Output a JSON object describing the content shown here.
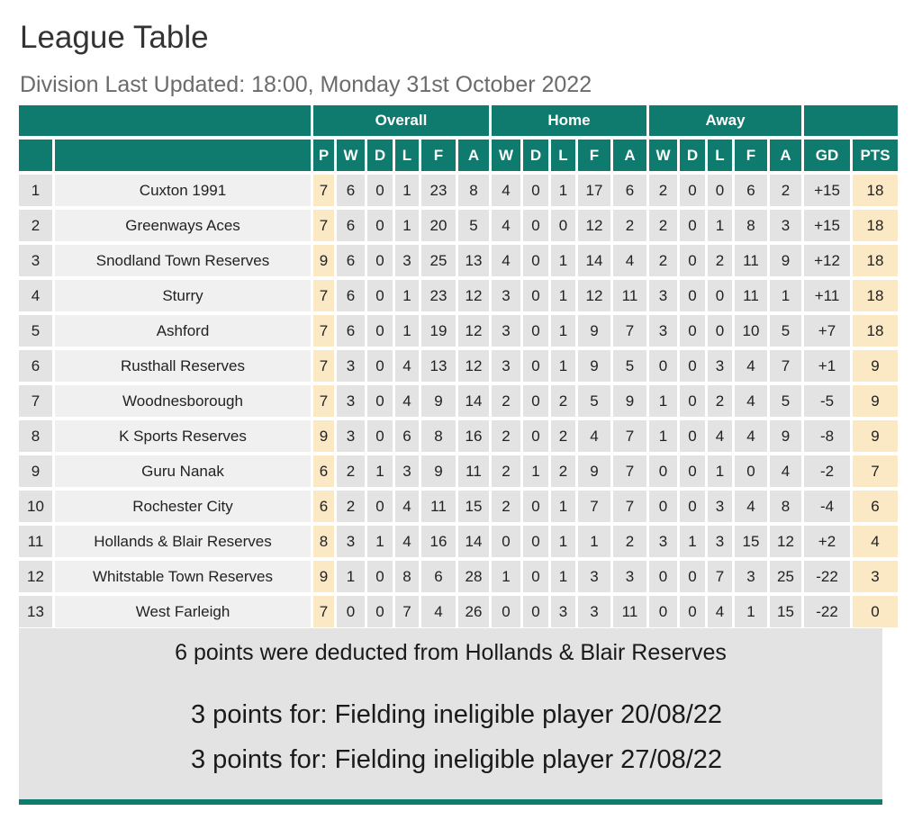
{
  "page": {
    "title": "League Table",
    "subtitle": "Division Last Updated: 18:00, Monday 31st October 2022"
  },
  "table": {
    "group_headers": [
      "",
      "Overall",
      "Home",
      "Away",
      ""
    ],
    "columns": [
      "",
      "",
      "P",
      "W",
      "D",
      "L",
      "F",
      "A",
      "W",
      "D",
      "L",
      "F",
      "A",
      "W",
      "D",
      "L",
      "F",
      "A",
      "GD",
      "PTS"
    ],
    "rows": [
      [
        "1",
        "Cuxton 1991",
        "7",
        "6",
        "0",
        "1",
        "23",
        "8",
        "4",
        "0",
        "1",
        "17",
        "6",
        "2",
        "0",
        "0",
        "6",
        "2",
        "+15",
        "18"
      ],
      [
        "2",
        "Greenways Aces",
        "7",
        "6",
        "0",
        "1",
        "20",
        "5",
        "4",
        "0",
        "0",
        "12",
        "2",
        "2",
        "0",
        "1",
        "8",
        "3",
        "+15",
        "18"
      ],
      [
        "3",
        "Snodland Town Reserves",
        "9",
        "6",
        "0",
        "3",
        "25",
        "13",
        "4",
        "0",
        "1",
        "14",
        "4",
        "2",
        "0",
        "2",
        "11",
        "9",
        "+12",
        "18"
      ],
      [
        "4",
        "Sturry",
        "7",
        "6",
        "0",
        "1",
        "23",
        "12",
        "3",
        "0",
        "1",
        "12",
        "11",
        "3",
        "0",
        "0",
        "11",
        "1",
        "+11",
        "18"
      ],
      [
        "5",
        "Ashford",
        "7",
        "6",
        "0",
        "1",
        "19",
        "12",
        "3",
        "0",
        "1",
        "9",
        "7",
        "3",
        "0",
        "0",
        "10",
        "5",
        "+7",
        "18"
      ],
      [
        "6",
        "Rusthall Reserves",
        "7",
        "3",
        "0",
        "4",
        "13",
        "12",
        "3",
        "0",
        "1",
        "9",
        "5",
        "0",
        "0",
        "3",
        "4",
        "7",
        "+1",
        "9"
      ],
      [
        "7",
        "Woodnesborough",
        "7",
        "3",
        "0",
        "4",
        "9",
        "14",
        "2",
        "0",
        "2",
        "5",
        "9",
        "1",
        "0",
        "2",
        "4",
        "5",
        "-5",
        "9"
      ],
      [
        "8",
        "K Sports Reserves",
        "9",
        "3",
        "0",
        "6",
        "8",
        "16",
        "2",
        "0",
        "2",
        "4",
        "7",
        "1",
        "0",
        "4",
        "4",
        "9",
        "-8",
        "9"
      ],
      [
        "9",
        "Guru Nanak",
        "6",
        "2",
        "1",
        "3",
        "9",
        "11",
        "2",
        "1",
        "2",
        "9",
        "7",
        "0",
        "0",
        "1",
        "0",
        "4",
        "-2",
        "7"
      ],
      [
        "10",
        "Rochester City",
        "6",
        "2",
        "0",
        "4",
        "11",
        "15",
        "2",
        "0",
        "1",
        "7",
        "7",
        "0",
        "0",
        "3",
        "4",
        "8",
        "-4",
        "6"
      ],
      [
        "11",
        "Hollands & Blair Reserves",
        "8",
        "3",
        "1",
        "4",
        "16",
        "14",
        "0",
        "0",
        "1",
        "1",
        "2",
        "3",
        "1",
        "3",
        "15",
        "12",
        "+2",
        "4"
      ],
      [
        "12",
        "Whitstable Town Reserves",
        "9",
        "1",
        "0",
        "8",
        "6",
        "28",
        "1",
        "0",
        "1",
        "3",
        "3",
        "0",
        "0",
        "7",
        "3",
        "25",
        "-22",
        "3"
      ],
      [
        "13",
        "West Farleigh",
        "7",
        "0",
        "0",
        "7",
        "4",
        "26",
        "0",
        "0",
        "3",
        "3",
        "11",
        "0",
        "0",
        "4",
        "1",
        "15",
        "-22",
        "0"
      ]
    ]
  },
  "notes": {
    "deduction": "6 points were deducted from Hollands & Blair Reserves",
    "reasons": [
      "3 points for: Fielding ineligible player 20/08/22",
      "3 points for: Fielding ineligible player 27/08/22"
    ]
  },
  "colors": {
    "header": "#0f7a6e",
    "played_highlight": "#fbe8c5",
    "row_bg": "#e3e3e3"
  }
}
